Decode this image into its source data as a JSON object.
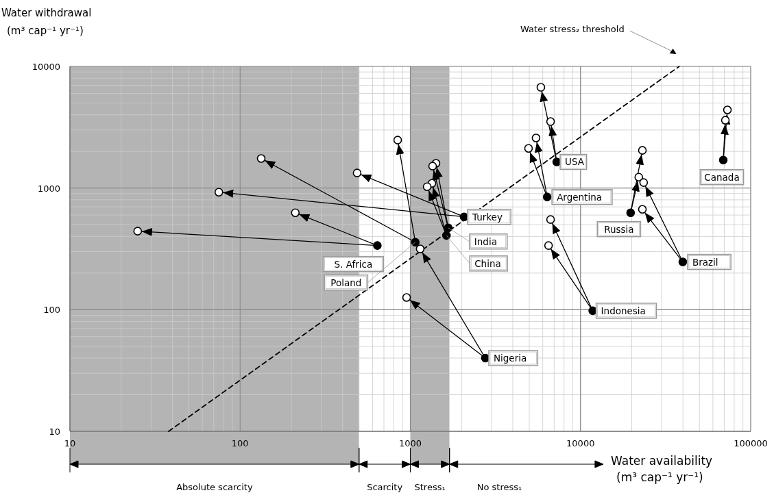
{
  "chart_data": {
    "type": "scatter",
    "xlabel": "Water availability\n(m³ cap⁻¹ yr⁻¹)",
    "ylabel": "Water withdrawal\n(m³ cap⁻¹ yr⁻¹)",
    "log": "xy",
    "grid": true,
    "xlim": [
      10,
      100000
    ],
    "xticks": [
      10,
      100,
      1000,
      10000,
      100000
    ],
    "ylim": [
      10,
      10000
    ],
    "yticks": [
      10,
      100,
      1000,
      10000
    ],
    "bands": [
      {
        "axis": "x",
        "from": 10,
        "to": 500,
        "label": "Absolute scarcity",
        "color": "#b4b4b4"
      },
      {
        "axis": "x",
        "from": 500,
        "to": 1000,
        "label": "Scarcity",
        "color": "#ffffff"
      },
      {
        "axis": "x",
        "from": 1000,
        "to": 1700,
        "label": "Stress₁",
        "color": "#b4b4b4"
      },
      {
        "axis": "x",
        "from": 1700,
        "to": 13600,
        "label": "No stress₁",
        "color": "#ffffff"
      }
    ],
    "series": [
      {
        "name": "Water stress₂ threshold",
        "type": "line",
        "line_style": "dashed",
        "marker": "none",
        "color": "#000000",
        "x": [
          38,
          38000
        ],
        "values": [
          10,
          10000
        ]
      },
      {
        "type": "line",
        "color": "#000000",
        "x": [
          640,
          25
        ],
        "values": [
          337,
          442
        ]
      },
      {
        "type": "line",
        "color": "#000000",
        "x": [
          640,
          211
        ],
        "values": [
          337,
          627
        ]
      },
      {
        "type": "line",
        "color": "#000000",
        "x": [
          1070,
          133
        ],
        "values": [
          359,
          1750
        ]
      },
      {
        "type": "line",
        "color": "#000000",
        "x": [
          1070,
          843
        ],
        "values": [
          359,
          2480
        ]
      },
      {
        "type": "line",
        "color": "#000000",
        "x": [
          2070,
          75
        ],
        "values": [
          580,
          925
        ]
      },
      {
        "type": "line",
        "color": "#000000",
        "x": [
          2070,
          487
        ],
        "values": [
          580,
          1330
        ]
      },
      {
        "type": "line",
        "color": "#000000",
        "x": [
          1670,
          1416
        ],
        "values": [
          471,
          1597
        ]
      },
      {
        "type": "line",
        "color": "#000000",
        "x": [
          1670,
          1352
        ],
        "values": [
          471,
          1514
        ]
      },
      {
        "type": "line",
        "color": "#000000",
        "x": [
          1630,
          1340
        ],
        "values": [
          408,
          1094
        ]
      },
      {
        "type": "line",
        "color": "#000000",
        "x": [
          1630,
          1256
        ],
        "values": [
          408,
          1026
        ]
      },
      {
        "type": "line",
        "color": "#000000",
        "x": [
          2760,
          1143
        ],
        "values": [
          40,
          316
        ]
      },
      {
        "type": "line",
        "color": "#000000",
        "x": [
          2760,
          951
        ],
        "values": [
          40,
          126
        ]
      },
      {
        "type": "line",
        "color": "#000000",
        "x": [
          11800,
          6670
        ],
        "values": [
          98,
          551
        ]
      },
      {
        "type": "line",
        "color": "#000000",
        "x": [
          11800,
          6490
        ],
        "values": [
          98,
          337
        ]
      },
      {
        "type": "line",
        "color": "#000000",
        "x": [
          6370,
          5480
        ],
        "values": [
          845,
          2580
        ]
      },
      {
        "type": "line",
        "color": "#000000",
        "x": [
          6370,
          4950
        ],
        "values": [
          845,
          2120
        ]
      },
      {
        "type": "line",
        "color": "#000000",
        "x": [
          7250,
          5850
        ],
        "values": [
          1640,
          6730
        ]
      },
      {
        "type": "line",
        "color": "#000000",
        "x": [
          7250,
          6670
        ],
        "values": [
          1640,
          3520
        ]
      },
      {
        "type": "line",
        "color": "#000000",
        "x": [
          19700,
          23100
        ],
        "values": [
          627,
          2040
        ]
      },
      {
        "type": "line",
        "color": "#000000",
        "x": [
          19700,
          22000
        ],
        "values": [
          627,
          1230
        ]
      },
      {
        "type": "line",
        "color": "#000000",
        "x": [
          39900,
          23500
        ],
        "values": [
          247,
          1110
        ]
      },
      {
        "type": "line",
        "color": "#000000",
        "x": [
          39900,
          23100
        ],
        "values": [
          247,
          668
        ]
      },
      {
        "type": "line",
        "color": "#000000",
        "x": [
          69000,
          73000
        ],
        "values": [
          1700,
          4390
        ]
      },
      {
        "type": "line",
        "color": "#000000",
        "x": [
          69000,
          71000
        ],
        "values": [
          1700,
          3610
        ]
      },
      {
        "marker": "circle",
        "color": "#000000",
        "x": [
          640,
          1070,
          2070,
          1670,
          1630,
          2760,
          11800,
          6370,
          7250,
          19700,
          39900,
          69000
        ],
        "values": [
          337,
          359,
          580,
          471,
          408,
          40,
          98,
          845,
          1640,
          627,
          247,
          1700
        ]
      },
      {
        "marker": "circle",
        "color": "#ffffff",
        "x": [
          25,
          211,
          133,
          843,
          75,
          487,
          1416,
          1352,
          1340,
          1256,
          1143,
          951,
          6670,
          6490,
          5480,
          4950,
          5850,
          6670,
          23100,
          22000,
          23500,
          23100,
          73000,
          71000
        ],
        "values": [
          442,
          627,
          1750,
          2480,
          925,
          1330,
          1597,
          1514,
          1094,
          1026,
          316,
          126,
          551,
          337,
          2580,
          2120,
          6730,
          3520,
          2040,
          1230,
          1110,
          668,
          4390,
          3610
        ]
      }
    ],
    "annotations": [
      {
        "text": "S. Africa",
        "x": 640,
        "y": 337
      },
      {
        "text": "Poland",
        "x": 1070,
        "y": 359
      },
      {
        "text": "Turkey",
        "x": 2070,
        "y": 580
      },
      {
        "text": "India",
        "x": 1670,
        "y": 471
      },
      {
        "text": "China",
        "x": 1630,
        "y": 408
      },
      {
        "text": "Nigeria",
        "x": 2760,
        "y": 40
      },
      {
        "text": "Indonesia",
        "x": 11800,
        "y": 98
      },
      {
        "text": "Argentina",
        "x": 6370,
        "y": 845
      },
      {
        "text": "USA",
        "x": 7250,
        "y": 1640
      },
      {
        "text": "Russia",
        "x": 19700,
        "y": 627
      },
      {
        "text": "Brazil",
        "x": 39900,
        "y": 247
      },
      {
        "text": "Canada",
        "x": 69000,
        "y": 1700
      }
    ]
  }
}
